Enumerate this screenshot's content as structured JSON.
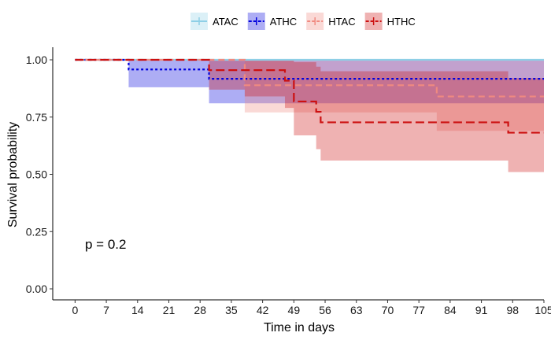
{
  "chart_data": {
    "type": "line",
    "subtype": "kaplan-meier step",
    "xlabel": "Time in days",
    "ylabel": "Survival probability",
    "xlim": [
      -5,
      105
    ],
    "ylim": [
      0,
      1
    ],
    "x_ticks": [
      0,
      7,
      14,
      21,
      28,
      35,
      42,
      49,
      56,
      63,
      70,
      77,
      84,
      91,
      98,
      105
    ],
    "y_ticks": [
      0,
      0.25,
      0.5,
      0.75,
      1
    ],
    "y_tick_labels": [
      "0.00",
      "0.25",
      "0.50",
      "0.75",
      "1.00"
    ],
    "annotation": "p = 0.2",
    "legend_position": "top",
    "series": [
      {
        "name": "ATAC",
        "color": "#8ecfe6",
        "dash": "solid",
        "steps": [
          [
            0,
            1.0
          ],
          [
            105,
            1.0
          ]
        ],
        "ci": [
          [
            0,
            1.0,
            1.0
          ],
          [
            105,
            1.0,
            1.0
          ]
        ]
      },
      {
        "name": "ATHC",
        "color": "#0000dd",
        "dash": "dotted",
        "steps": [
          [
            0,
            1.0
          ],
          [
            12,
            0.958
          ],
          [
            30,
            0.917
          ],
          [
            105,
            0.917
          ]
        ],
        "ci": [
          [
            0,
            1.0,
            1.0
          ],
          [
            12,
            0.88,
            1.0
          ],
          [
            30,
            0.81,
            1.0
          ],
          [
            105,
            0.81,
            1.0
          ]
        ]
      },
      {
        "name": "HTAC",
        "color": "#f08a80",
        "dash": "dashed",
        "steps": [
          [
            0,
            1.0
          ],
          [
            38,
            0.889
          ],
          [
            81,
            0.84
          ],
          [
            105,
            0.84
          ]
        ],
        "ci": [
          [
            0,
            1.0,
            1.0
          ],
          [
            38,
            0.77,
            1.0
          ],
          [
            81,
            0.69,
            1.0
          ],
          [
            105,
            0.69,
            1.0
          ]
        ]
      },
      {
        "name": "HTHC",
        "color": "#cc1111",
        "dash": "longdash",
        "steps": [
          [
            0,
            1.0
          ],
          [
            30,
            0.955
          ],
          [
            38,
            0.955
          ],
          [
            47,
            0.909
          ],
          [
            49,
            0.818
          ],
          [
            54,
            0.773
          ],
          [
            55,
            0.727
          ],
          [
            97,
            0.682
          ],
          [
            105,
            0.682
          ]
        ],
        "ci": [
          [
            0,
            1.0,
            1.0
          ],
          [
            30,
            0.87,
            1.0
          ],
          [
            38,
            0.84,
            1.0
          ],
          [
            47,
            0.79,
            1.0
          ],
          [
            49,
            0.67,
            0.99
          ],
          [
            54,
            0.61,
            0.97
          ],
          [
            55,
            0.56,
            0.95
          ],
          [
            97,
            0.51,
            0.92
          ],
          [
            105,
            0.51,
            0.92
          ]
        ]
      }
    ]
  }
}
